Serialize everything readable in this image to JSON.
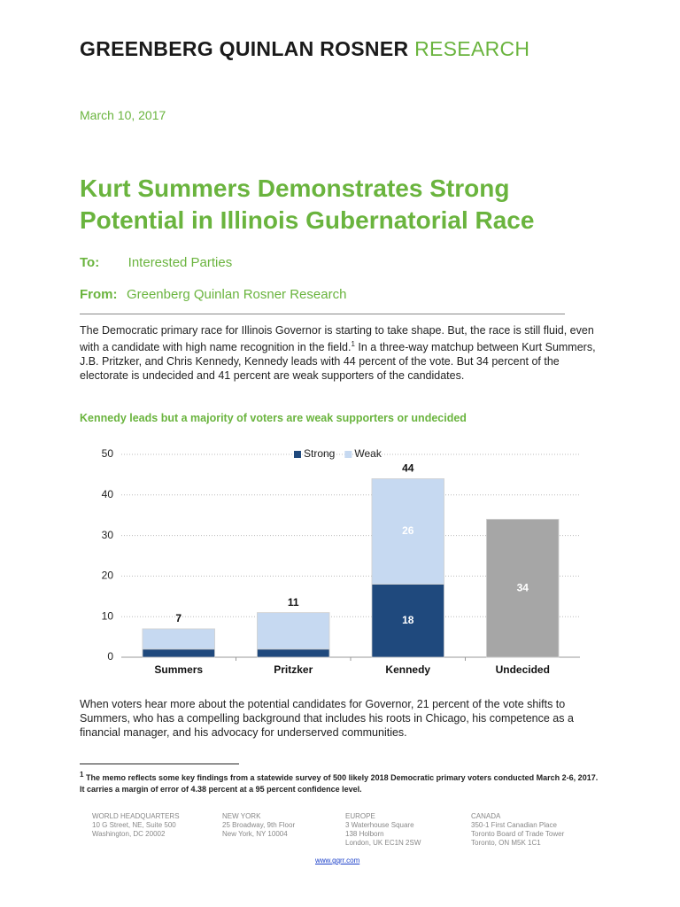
{
  "header": {
    "brand": "GREENBERG QUINLAN ROSNER",
    "brand_suffix": "RESEARCH"
  },
  "date": "March 10, 2017",
  "title": [
    "Kurt Summers Demonstrates Strong",
    "Potential in Illinois Gubernatorial Race"
  ],
  "to": {
    "label": "To:",
    "value": "Interested Parties"
  },
  "from": {
    "label": "From:",
    "value": "Greenberg Quinlan Rosner Research"
  },
  "paragraphs": [
    {
      "before": "The Democratic primary race for Illinois Governor is starting to take shape. But, the race is still fluid, even with a candidate with high name recognition in the field.",
      "note": "1",
      "after": " In a three-way matchup between Kurt Summers, J.B. Pritzker, and Chris Kennedy, Kennedy leads with 44 percent of the vote. But 34 percent of the electorate is undecided and 41 percent are weak supporters of the candidates."
    },
    {
      "before": "When voters hear more about the potential candidates for Governor, 21 percent of the vote shifts to Summers, who has a compelling background that includes his roots in Chicago, his competence as a financial manager, and his advocacy for underserved communities."
    }
  ],
  "chart_data": {
    "type": "stacked_bar",
    "title": "Kennedy leads but a majority of voters are weak supporters or undecided",
    "categories": [
      "Summers",
      "Pritzker",
      "Kennedy",
      "Undecided"
    ],
    "series": [
      {
        "name": "Strong",
        "color": "#1f497d",
        "values": [
          2,
          2,
          18,
          null
        ],
        "show_labels": [
          false,
          false,
          true,
          false
        ]
      },
      {
        "name": "Weak",
        "color": "#c6d9f1",
        "values": [
          5,
          9,
          26,
          null
        ],
        "show_labels": [
          false,
          false,
          true,
          false
        ]
      },
      {
        "color": "#a6a6a6",
        "values": [
          null,
          null,
          null,
          34
        ],
        "show_labels": [
          false,
          false,
          false,
          true
        ]
      }
    ],
    "totals": [
      7,
      11,
      44,
      null
    ],
    "ylim": [
      0,
      50
    ],
    "yticks": [
      0,
      10,
      20,
      30,
      40,
      50
    ],
    "grid": true,
    "legend": "top"
  },
  "footnote": {
    "marker": "1",
    "text": "The memo reflects some key findings from a statewide survey of 500 likely 2018 Democratic primary voters conducted March 2-6, 2017.  It carries a margin of error of 4.38 percent at a 95 percent confidence level."
  },
  "footer": {
    "offices": [
      {
        "name": "WORLD HEADQUARTERS",
        "lines": [
          "10 G Street, NE, Suite 500",
          "Washington, DC 20002"
        ]
      },
      {
        "name": "NEW YORK",
        "lines": [
          "25 Broadway, 9th Floor",
          "New York, NY 10004"
        ]
      },
      {
        "name": "EUROPE",
        "lines": [
          "3 Waterhouse Square",
          "138 Holborn",
          "London, UK EC1N 2SW"
        ]
      },
      {
        "name": "CANADA",
        "lines": [
          "350-1 First Canadian Place",
          "Toronto Board of Trade Tower",
          "Toronto, ON M5K 1C1"
        ]
      }
    ],
    "website": "www.gqrr.com"
  }
}
